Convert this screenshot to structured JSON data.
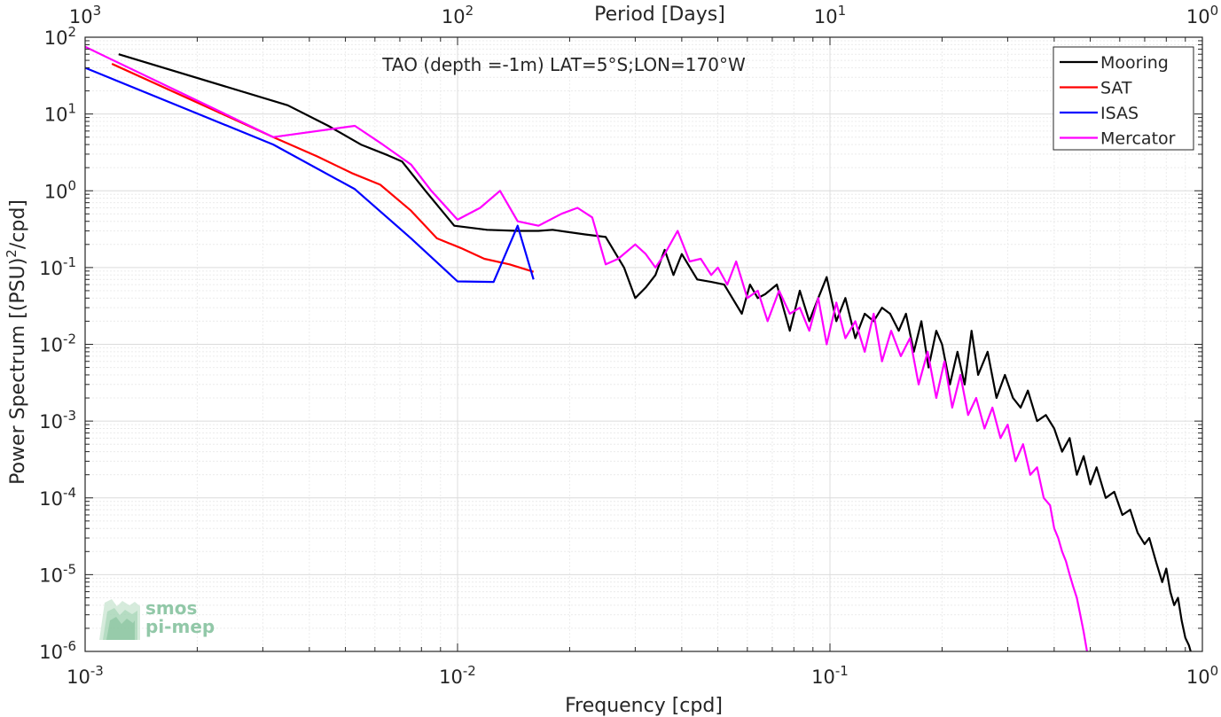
{
  "chart_data": {
    "type": "line",
    "title": "TAO (depth =-1m) LAT=5°S;LON=170°W",
    "xlabel": "Frequency [cpd]",
    "ylabel_main": "Power Spectrum [(PSU)",
    "ylabel_sup": "2",
    "ylabel_tail": "/cpd]",
    "top_xlabel": "Period [Days]",
    "xscale": "log",
    "yscale": "log",
    "xlim": [
      0.001,
      1
    ],
    "ylim": [
      1e-06,
      100
    ],
    "grid": true,
    "legend_position": "top-right",
    "x_ticks": [
      {
        "value": 0.001,
        "base": "10",
        "exp": "-3"
      },
      {
        "value": 0.01,
        "base": "10",
        "exp": "-2"
      },
      {
        "value": 0.1,
        "base": "10",
        "exp": "-1"
      },
      {
        "value": 1,
        "base": "10",
        "exp": "0"
      }
    ],
    "top_ticks": [
      {
        "value": 0.001,
        "base": "10",
        "exp": "3"
      },
      {
        "value": 0.01,
        "base": "10",
        "exp": "2"
      },
      {
        "value": 0.1,
        "base": "10",
        "exp": "1"
      },
      {
        "value": 1,
        "base": "10",
        "exp": "0"
      }
    ],
    "y_ticks": [
      {
        "value": 100,
        "base": "10",
        "exp": "2"
      },
      {
        "value": 10,
        "base": "10",
        "exp": "1"
      },
      {
        "value": 1,
        "base": "10",
        "exp": "0"
      },
      {
        "value": 0.1,
        "base": "10",
        "exp": "-1"
      },
      {
        "value": 0.01,
        "base": "10",
        "exp": "-2"
      },
      {
        "value": 0.001,
        "base": "10",
        "exp": "-3"
      },
      {
        "value": 0.0001,
        "base": "10",
        "exp": "-4"
      },
      {
        "value": 1e-05,
        "base": "10",
        "exp": "-5"
      },
      {
        "value": 1e-06,
        "base": "10",
        "exp": "-6"
      }
    ],
    "series": [
      {
        "name": "Mooring",
        "color": "#000000",
        "x": [
          0.00123,
          0.0035,
          0.0045,
          0.0055,
          0.0065,
          0.0071,
          0.0082,
          0.0098,
          0.012,
          0.0145,
          0.0165,
          0.018,
          0.022,
          0.025,
          0.028,
          0.03,
          0.032,
          0.034,
          0.036,
          0.038,
          0.04,
          0.044,
          0.048,
          0.052,
          0.058,
          0.061,
          0.064,
          0.067,
          0.072,
          0.078,
          0.083,
          0.088,
          0.093,
          0.098,
          0.104,
          0.11,
          0.117,
          0.124,
          0.131,
          0.138,
          0.145,
          0.153,
          0.16,
          0.168,
          0.176,
          0.184,
          0.193,
          0.2,
          0.21,
          0.22,
          0.23,
          0.24,
          0.25,
          0.265,
          0.28,
          0.295,
          0.31,
          0.325,
          0.34,
          0.36,
          0.38,
          0.4,
          0.42,
          0.44,
          0.46,
          0.48,
          0.5,
          0.52,
          0.55,
          0.58,
          0.61,
          0.64,
          0.67,
          0.7,
          0.72,
          0.75,
          0.78,
          0.8,
          0.82,
          0.84,
          0.86,
          0.88,
          0.9,
          0.92,
          0.93
        ],
        "values": [
          60,
          13,
          7,
          4,
          2.9,
          2.4,
          1.0,
          0.35,
          0.31,
          0.3,
          0.3,
          0.31,
          0.27,
          0.25,
          0.1,
          0.04,
          0.055,
          0.08,
          0.17,
          0.08,
          0.15,
          0.07,
          0.065,
          0.06,
          0.025,
          0.06,
          0.04,
          0.045,
          0.06,
          0.015,
          0.05,
          0.02,
          0.04,
          0.075,
          0.02,
          0.04,
          0.012,
          0.025,
          0.02,
          0.03,
          0.025,
          0.015,
          0.025,
          0.008,
          0.02,
          0.005,
          0.015,
          0.01,
          0.003,
          0.008,
          0.003,
          0.015,
          0.004,
          0.008,
          0.002,
          0.004,
          0.002,
          0.0015,
          0.0025,
          0.001,
          0.0012,
          0.0008,
          0.0004,
          0.0006,
          0.0002,
          0.00035,
          0.00015,
          0.00025,
          0.0001,
          0.00012,
          6e-05,
          7e-05,
          3.5e-05,
          2.5e-05,
          3e-05,
          1.5e-05,
          8e-06,
          1.2e-05,
          6e-06,
          4e-06,
          5e-06,
          2.5e-06,
          1.5e-06,
          1.2e-06,
          1e-06
        ]
      },
      {
        "name": "SAT",
        "color": "#ff0000",
        "x": [
          0.00118,
          0.0032,
          0.0042,
          0.0052,
          0.0062,
          0.0075,
          0.0088,
          0.0102,
          0.0118,
          0.0138,
          0.016
        ],
        "values": [
          45,
          5.0,
          2.8,
          1.7,
          1.2,
          0.55,
          0.24,
          0.18,
          0.13,
          0.11,
          0.088
        ]
      },
      {
        "name": "ISAS",
        "color": "#0000ff",
        "x": [
          0.001,
          0.0032,
          0.0053,
          0.0075,
          0.01,
          0.0125,
          0.0145,
          0.016
        ],
        "values": [
          40,
          4.0,
          1.05,
          0.24,
          0.066,
          0.065,
          0.35,
          0.07
        ]
      },
      {
        "name": "Mercator",
        "color": "#ff00ff",
        "x": [
          0.001,
          0.0032,
          0.0053,
          0.0063,
          0.0075,
          0.0085,
          0.01,
          0.0115,
          0.013,
          0.0145,
          0.0165,
          0.019,
          0.021,
          0.023,
          0.025,
          0.027,
          0.03,
          0.032,
          0.034,
          0.036,
          0.039,
          0.042,
          0.045,
          0.048,
          0.05,
          0.053,
          0.056,
          0.06,
          0.064,
          0.068,
          0.073,
          0.078,
          0.083,
          0.088,
          0.093,
          0.098,
          0.104,
          0.11,
          0.117,
          0.124,
          0.131,
          0.138,
          0.146,
          0.155,
          0.164,
          0.173,
          0.183,
          0.193,
          0.203,
          0.213,
          0.224,
          0.235,
          0.247,
          0.26,
          0.273,
          0.287,
          0.3,
          0.315,
          0.33,
          0.345,
          0.36,
          0.375,
          0.39,
          0.4,
          0.41,
          0.42,
          0.43,
          0.44,
          0.45,
          0.46,
          0.47,
          0.48,
          0.49
        ],
        "values": [
          75,
          5.0,
          7.0,
          4.0,
          2.2,
          1.0,
          0.42,
          0.6,
          1.0,
          0.4,
          0.35,
          0.5,
          0.6,
          0.45,
          0.11,
          0.13,
          0.2,
          0.15,
          0.1,
          0.15,
          0.3,
          0.12,
          0.13,
          0.08,
          0.1,
          0.06,
          0.12,
          0.04,
          0.05,
          0.02,
          0.05,
          0.025,
          0.03,
          0.015,
          0.04,
          0.01,
          0.035,
          0.012,
          0.02,
          0.008,
          0.025,
          0.006,
          0.015,
          0.007,
          0.012,
          0.003,
          0.008,
          0.002,
          0.006,
          0.0015,
          0.004,
          0.0012,
          0.002,
          0.0008,
          0.0015,
          0.0006,
          0.0009,
          0.0003,
          0.0005,
          0.0002,
          0.00025,
          0.0001,
          8e-05,
          4e-05,
          3e-05,
          2e-05,
          1.5e-05,
          1e-05,
          7e-06,
          5e-06,
          3e-06,
          1.8e-06,
          1e-06
        ]
      }
    ]
  },
  "watermark": {
    "line1": "smos",
    "line2": "pi-mep",
    "color": "#7fbf9a"
  }
}
